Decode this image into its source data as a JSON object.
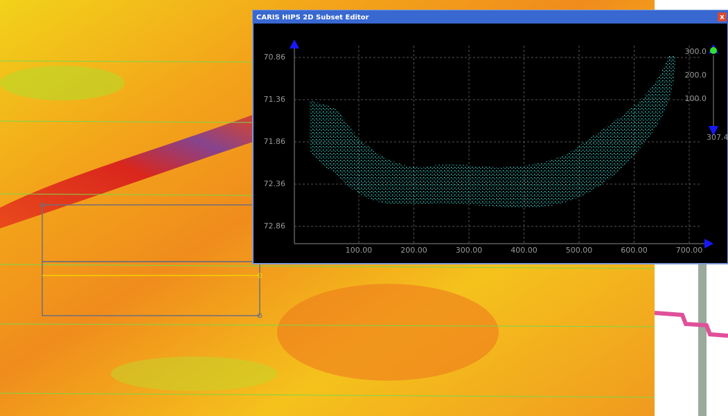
{
  "window": {
    "title": "CARIS HIPS 2D Subset Editor",
    "close": "x"
  },
  "plot": {
    "yticks": [
      "70.86",
      "71.36",
      "71.86",
      "72.36",
      "72.86"
    ],
    "xticks": [
      "100.00",
      "200.00",
      "300.00",
      "400.00",
      "500.00",
      "600.00",
      "700.00"
    ],
    "right_scale": [
      "300.0",
      "200.0",
      "100.0"
    ],
    "right_value": "307.4"
  }
}
